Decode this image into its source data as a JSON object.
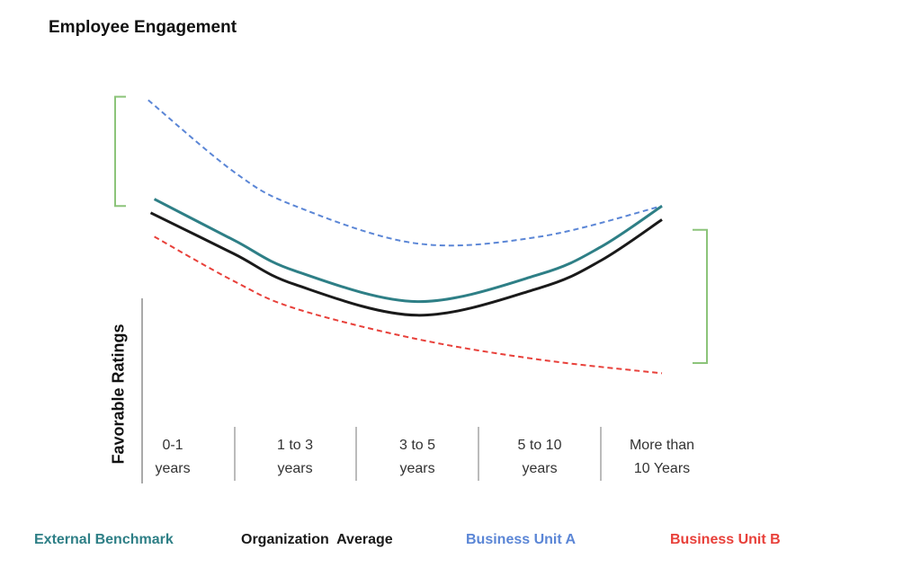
{
  "title": "Employee Engagement",
  "chart_data": {
    "type": "line",
    "title": "Employee Engagement",
    "ylabel": "Favorable Ratings",
    "xlabel": "",
    "categories": [
      "0-1 years",
      "1 to 3 years",
      "3 to 5 years",
      "5 to 10 years",
      "More than 10 Years"
    ],
    "category_lines": [
      [
        "0-1",
        "years"
      ],
      [
        "1 to 3",
        "years"
      ],
      [
        "3 to 5",
        "years"
      ],
      [
        "5 to 10",
        "years"
      ],
      [
        "More than",
        "10 Years"
      ]
    ],
    "y_scale": "relative, unlabeled",
    "ylim": [
      0,
      100
    ],
    "grid": false,
    "legend_placement": "bottom",
    "series": [
      {
        "name": "External Benchmark",
        "color": "#2e7f86",
        "style": "solid",
        "x": [
          -0.15,
          0.5,
          1,
          2,
          3,
          3.5,
          4
        ],
        "values": [
          68,
          56,
          47,
          38,
          46,
          54,
          66
        ]
      },
      {
        "name": "Organization  Average",
        "color": "#1a1a1a",
        "style": "solid",
        "x": [
          -0.18,
          0.5,
          1,
          2,
          3,
          3.5,
          4
        ],
        "values": [
          64,
          52,
          43,
          34,
          42,
          50,
          62
        ]
      },
      {
        "name": "Business Unit A",
        "color": "#5b86d6",
        "style": "dashed",
        "x": [
          -0.2,
          0.5,
          1,
          2,
          3,
          4
        ],
        "values": [
          97,
          76,
          66,
          55,
          57,
          66
        ]
      },
      {
        "name": "Business Unit B",
        "color": "#e8403a",
        "style": "dashed",
        "x": [
          -0.15,
          0.5,
          1,
          2,
          3,
          4
        ],
        "values": [
          57,
          44,
          36,
          27,
          21,
          17
        ]
      }
    ],
    "annotations": [
      {
        "type": "bracket",
        "side": "left",
        "color": "#8cc47a",
        "range": [
          66,
          98
        ]
      },
      {
        "type": "bracket",
        "side": "right",
        "color": "#8cc47a",
        "range": [
          20,
          59
        ]
      }
    ]
  }
}
